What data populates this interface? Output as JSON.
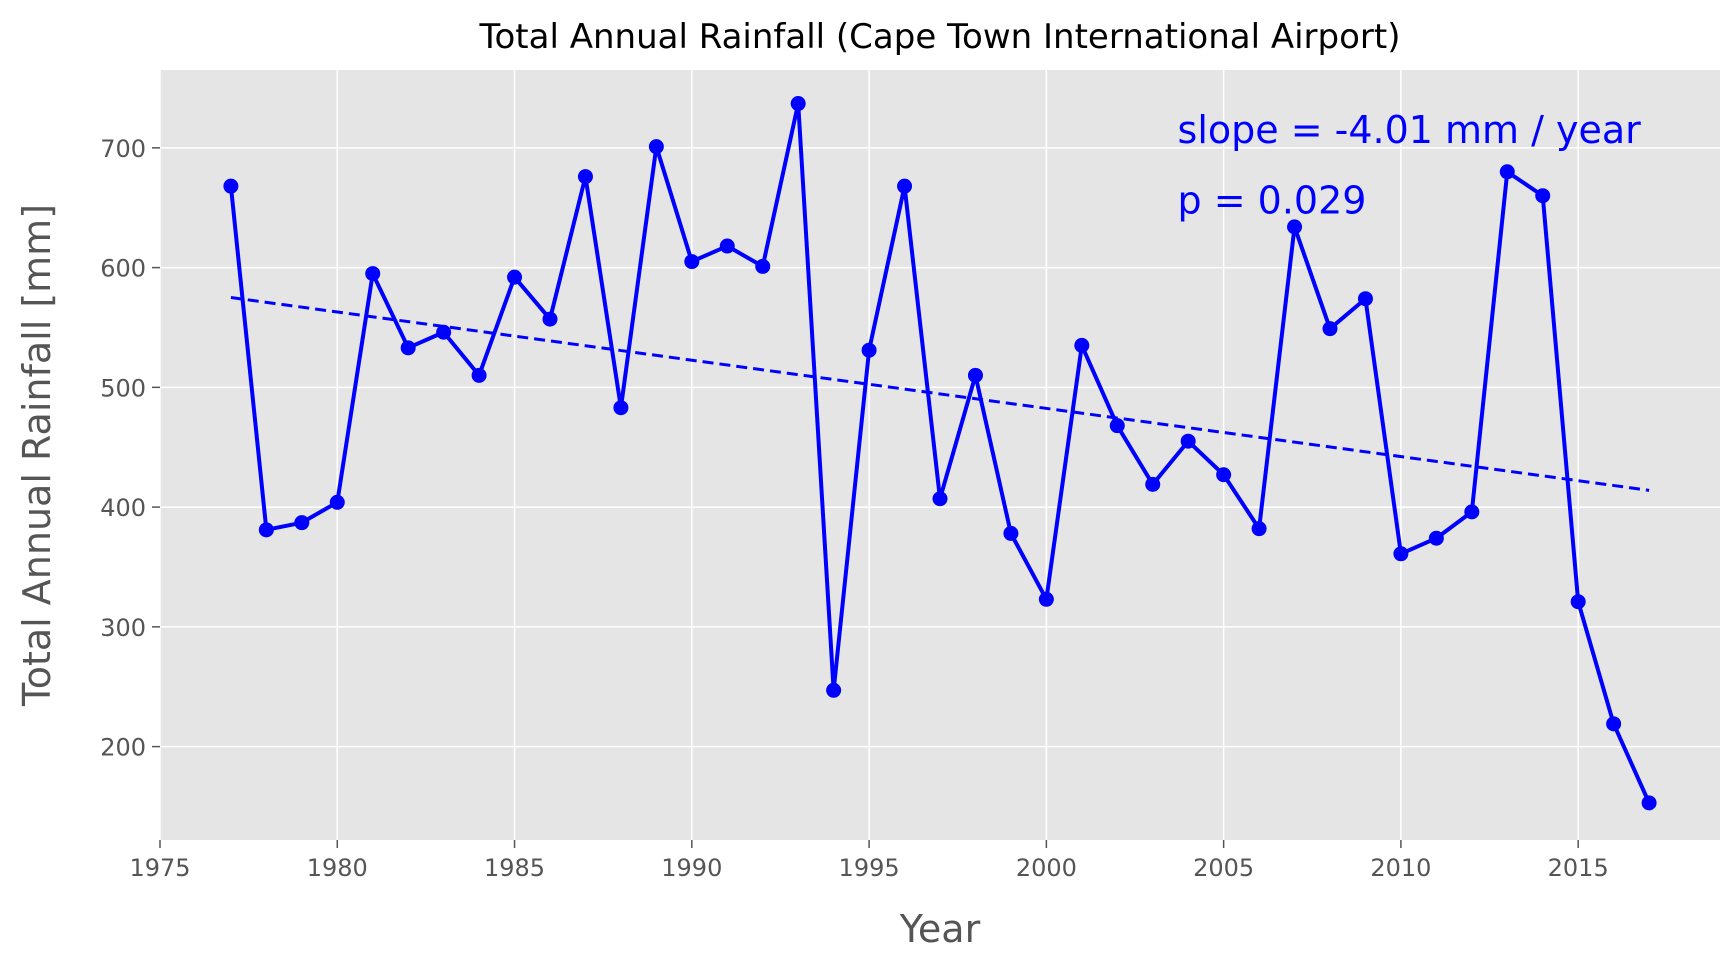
{
  "chart_data": {
    "type": "line",
    "title": "Total Annual Rainfall (Cape Town International Airport)",
    "xlabel": "Year",
    "ylabel": "Total Annual Rainfall [mm]",
    "xlim": [
      1975,
      2019
    ],
    "ylim": [
      122,
      765
    ],
    "xticks": [
      1975,
      1980,
      1985,
      1990,
      1995,
      2000,
      2005,
      2010,
      2015
    ],
    "yticks": [
      200,
      300,
      400,
      500,
      600,
      700
    ],
    "grid": true,
    "series": [
      {
        "color": "#0000ff",
        "style": "solid",
        "marker": "circle",
        "x": [
          1977,
          1978,
          1979,
          1980,
          1981,
          1982,
          1983,
          1984,
          1985,
          1986,
          1987,
          1988,
          1989,
          1990,
          1991,
          1992,
          1993,
          1994,
          1995,
          1996,
          1997,
          1998,
          1999,
          2000,
          2001,
          2002,
          2003,
          2004,
          2005,
          2006,
          2007,
          2008,
          2009,
          2010,
          2011,
          2012,
          2013,
          2014,
          2015,
          2016,
          2017
        ],
        "y": [
          668,
          381,
          387,
          404,
          595,
          533,
          546,
          510,
          592,
          557,
          676,
          483,
          701,
          605,
          618,
          601,
          737,
          247,
          531,
          668,
          407,
          510,
          378,
          323,
          535,
          468,
          419,
          455,
          427,
          382,
          634,
          549,
          574,
          361,
          374,
          396,
          680,
          660,
          321,
          219,
          153
        ]
      },
      {
        "color": "#0000ff",
        "style": "dashed",
        "x": [
          1977,
          2017
        ],
        "y": [
          575,
          414
        ]
      }
    ],
    "annotations": [
      {
        "text": "slope = -4.01 mm / year",
        "x": 2003.7,
        "y": 704,
        "color": "#0000ff"
      },
      {
        "text": "p = 0.029",
        "x": 2003.7,
        "y": 645,
        "color": "#0000ff"
      }
    ]
  }
}
